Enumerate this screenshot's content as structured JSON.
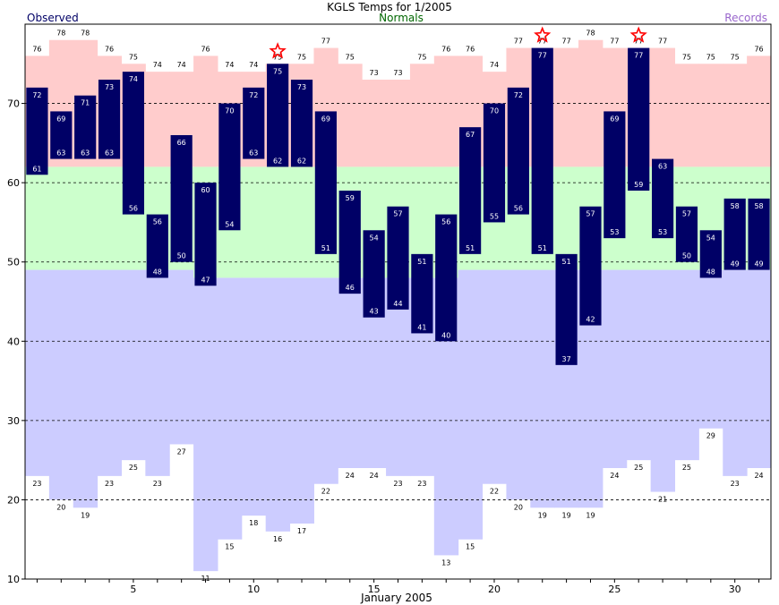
{
  "chart_data": {
    "type": "bar",
    "title": "KGLS Temps for 1/2005",
    "legend": {
      "observed": "Observed",
      "normals": "Normals",
      "records": "Records"
    },
    "xlabel": "January 2005",
    "ylabel": "",
    "xlim": [
      0.5,
      31.5
    ],
    "ylim": [
      10,
      80
    ],
    "x_ticks": [
      5,
      10,
      15,
      20,
      25,
      30
    ],
    "y_ticks": [
      10,
      20,
      30,
      40,
      50,
      60,
      70
    ],
    "grid_values": [
      20,
      30,
      40,
      50,
      60,
      70
    ],
    "days": [
      1,
      2,
      3,
      4,
      5,
      6,
      7,
      8,
      9,
      10,
      11,
      12,
      13,
      14,
      15,
      16,
      17,
      18,
      19,
      20,
      21,
      22,
      23,
      24,
      25,
      26,
      27,
      28,
      29,
      30,
      31
    ],
    "observed_high": [
      72,
      69,
      71,
      73,
      74,
      56,
      66,
      60,
      70,
      72,
      75,
      73,
      69,
      59,
      54,
      57,
      51,
      56,
      67,
      70,
      72,
      77,
      51,
      57,
      69,
      77,
      63,
      57,
      54,
      58,
      58
    ],
    "observed_low": [
      61,
      63,
      63,
      63,
      56,
      48,
      50,
      47,
      54,
      63,
      62,
      62,
      51,
      46,
      43,
      44,
      41,
      40,
      51,
      55,
      56,
      51,
      37,
      42,
      53,
      59,
      53,
      50,
      48,
      49,
      49
    ],
    "record_high": [
      76,
      78,
      78,
      76,
      75,
      74,
      74,
      76,
      74,
      74,
      75,
      75,
      77,
      75,
      73,
      73,
      75,
      76,
      76,
      74,
      77,
      77,
      77,
      78,
      77,
      77,
      77,
      75,
      75,
      75,
      76
    ],
    "record_low": [
      23,
      20,
      19,
      23,
      25,
      23,
      27,
      11,
      15,
      18,
      16,
      17,
      22,
      24,
      24,
      23,
      23,
      13,
      15,
      22,
      20,
      19,
      19,
      19,
      24,
      25,
      21,
      25,
      29,
      23,
      24
    ],
    "normal_high": [
      62,
      62,
      62,
      62,
      62,
      62,
      62,
      62,
      62,
      62,
      62,
      62,
      62,
      62,
      62,
      62,
      62,
      62,
      62,
      62,
      62,
      62,
      62,
      62,
      62,
      62,
      62,
      62,
      62,
      62,
      62
    ],
    "normal_low": [
      49,
      49,
      49,
      49,
      49,
      49,
      49,
      48,
      48,
      48,
      48,
      48,
      48,
      48,
      48,
      48,
      48,
      48,
      49,
      49,
      49,
      49,
      49,
      49,
      49,
      49,
      49,
      49,
      49,
      49,
      49
    ],
    "record_set_days": [
      11,
      22,
      26
    ],
    "colors": {
      "observed_bar": "#000066",
      "observed_label": "#ffffff",
      "record_high_fill": "#ffcccc",
      "normal_fill": "#ccffcc",
      "record_low_fill": "#ccccff",
      "record_star": "#ff0000",
      "title_observed": "#000066",
      "title_normals": "#006600",
      "title_records": "#9966cc",
      "grid": "#000000"
    }
  }
}
